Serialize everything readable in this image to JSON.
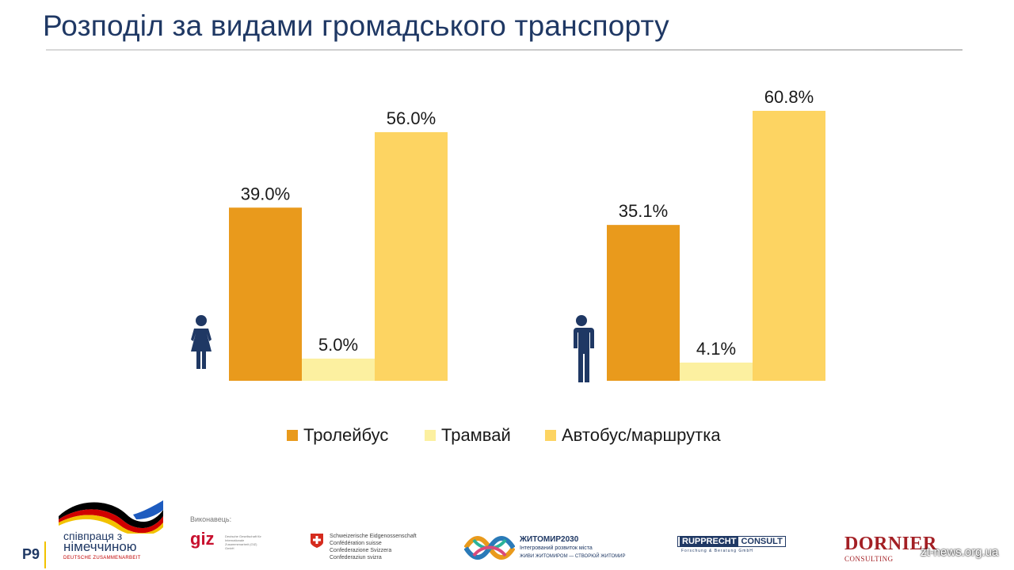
{
  "title": "Розподіл за видами громадського транспорту",
  "chart_data": {
    "type": "bar",
    "categories": [
      "women",
      "men"
    ],
    "series": [
      {
        "name": "Тролейбус",
        "values": [
          39.0,
          35.1
        ],
        "labels": [
          "39.0%",
          "35.1%"
        ],
        "color": "#e99a1c"
      },
      {
        "name": "Трамвай",
        "values": [
          5.0,
          4.1
        ],
        "labels": [
          "5.0%",
          "4.1%"
        ],
        "color": "#fcf0a0"
      },
      {
        "name": "Автобус/маршрутка",
        "values": [
          56.0,
          60.8
        ],
        "labels": [
          "56.0%",
          "60.8%"
        ],
        "color": "#fdd462"
      }
    ],
    "ylim": [
      0,
      60.8
    ],
    "grid": false,
    "legend": "bottom",
    "icons": [
      "female-icon",
      "male-icon"
    ]
  },
  "footer": {
    "page": "P9",
    "coop_line1": "співпраця з",
    "coop_line2": "німеччиною",
    "coop_line3": "DEUTSCHE ZUSAMMENARBEIT",
    "executor": "Виконавець:",
    "giz": "giz",
    "giz_small": "Deutsche Gesellschaft für Internationale Zusammenarbeit (GIZ) GmbH",
    "swiss": [
      "Schweizerische Eidgenossenschaft",
      "Confédération suisse",
      "Confederazione Svizzera",
      "Confederaziun svizra"
    ],
    "zhyt_title": "ЖИТОМИР2030",
    "zhyt_sub": "Інтегрований розвиток міста",
    "zhyt_sub2": "ЖИВИ ЖИТОМИРОМ — СТВОРЮЙ ЖИТОМИР",
    "rupp_1": "RUPPRECHT",
    "rupp_2": "CONSULT",
    "rupp_sub": "Forschung & Beratung GmbH",
    "dornier": "DORNIER",
    "dornier_sub": "CONSULTING",
    "watermark": "zt-news.org.ua"
  },
  "colors": {
    "title": "#1f3864",
    "flag_yellow": "#f2c200",
    "brand_red": "#c8102e"
  }
}
